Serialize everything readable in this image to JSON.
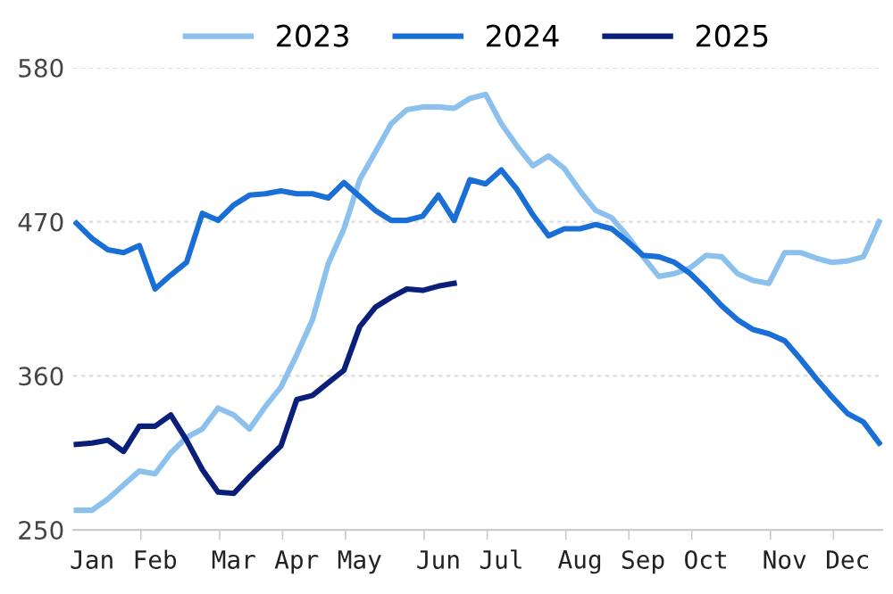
{
  "chart_data": {
    "type": "line",
    "categories": [
      null,
      "Jan",
      null,
      null,
      null,
      "Feb",
      null,
      null,
      null,
      null,
      "Mar",
      null,
      null,
      null,
      "Apr",
      null,
      null,
      null,
      "May",
      null,
      null,
      null,
      null,
      "Jun",
      null,
      null,
      null,
      "Jul",
      null,
      null,
      null,
      null,
      "Aug",
      null,
      null,
      null,
      "Sep",
      null,
      null,
      null,
      "Oct",
      null,
      null,
      null,
      null,
      "Nov",
      null,
      null,
      null,
      "Dec",
      null,
      null
    ],
    "series": [
      {
        "name": "2023",
        "color": "#8cc1ee",
        "values": [
          264,
          264,
          272,
          282,
          292,
          290,
          305,
          316,
          322,
          337,
          332,
          322,
          338,
          352,
          375,
          400,
          440,
          465,
          500,
          520,
          540,
          550,
          552,
          552,
          551,
          558,
          561,
          540,
          524,
          510,
          517,
          508,
          492,
          478,
          473,
          460,
          445,
          431,
          433,
          437,
          446,
          445,
          433,
          428,
          426,
          448,
          448,
          444,
          441,
          442,
          445,
          470
        ]
      },
      {
        "name": "2024",
        "color": "#1a6fd6",
        "values": [
          469,
          458,
          450,
          448,
          453,
          422,
          432,
          441,
          476,
          471,
          482,
          489,
          490,
          492,
          490,
          490,
          487,
          498,
          488,
          478,
          471,
          471,
          474,
          489,
          471,
          500,
          497,
          507,
          493,
          475,
          460,
          465,
          465,
          468,
          465,
          456,
          446,
          445,
          441,
          433,
          422,
          410,
          400,
          393,
          390,
          385,
          372,
          358,
          345,
          333,
          327,
          312
        ]
      },
      {
        "name": "2025",
        "color": "#0a1f7a",
        "values": [
          311,
          312,
          314,
          306,
          324,
          324,
          332,
          314,
          293,
          277,
          276,
          288,
          299,
          310,
          343,
          346,
          355,
          364,
          395,
          409,
          416,
          422,
          421,
          424,
          426,
          null,
          null,
          null,
          null,
          null,
          null,
          null,
          null,
          null,
          null,
          null,
          null,
          null,
          null,
          null,
          null,
          null,
          null,
          null,
          null,
          null,
          null,
          null,
          null,
          null,
          null,
          null
        ]
      }
    ],
    "ylim": [
      250,
      580
    ],
    "yticks": [
      250,
      360,
      470,
      580
    ],
    "grid": "y",
    "legend": "top",
    "marker": "none",
    "line_style": "solid"
  }
}
